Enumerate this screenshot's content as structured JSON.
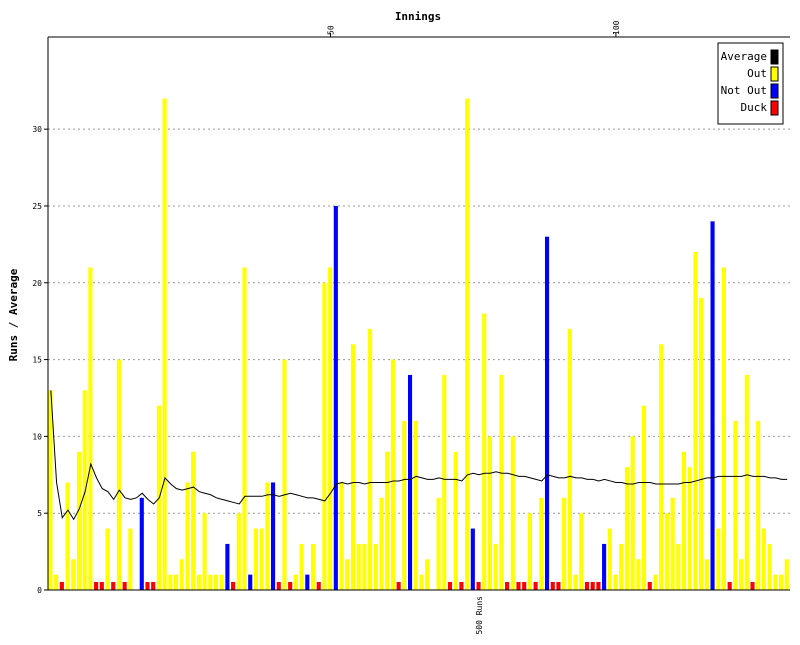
{
  "chart_data": {
    "type": "bar",
    "title": "",
    "xlabel": "Innings",
    "ylabel": "Runs / Average",
    "innings_count": 130,
    "xlim": [
      0,
      130
    ],
    "ylim": [
      0,
      36
    ],
    "yticks": [
      0,
      5,
      10,
      15,
      20,
      25,
      30
    ],
    "xticks_top": [
      50,
      100
    ],
    "grid": "horizontal dotted",
    "legend_position": "top-right",
    "legend": [
      {
        "label": "Average",
        "color": "#000000"
      },
      {
        "label": "Out",
        "color": "#ffff00"
      },
      {
        "label": "Not Out",
        "color": "#0000ff"
      },
      {
        "label": "Duck",
        "color": "#ff0000"
      }
    ],
    "colors": {
      "out": "#ffff00",
      "not_out": "#0000ff",
      "duck": "#ff0000",
      "average": "#000000"
    },
    "milestones": [
      {
        "label": "500 Runs",
        "innings": 76
      }
    ],
    "runs": [
      13,
      1,
      0,
      7,
      2,
      9,
      13,
      21,
      0,
      0,
      4,
      0,
      15,
      0,
      4,
      0,
      6,
      0,
      0,
      12,
      32,
      1,
      1,
      2,
      7,
      9,
      1,
      5,
      1,
      1,
      1,
      3,
      0,
      5,
      21,
      1,
      4,
      4,
      7,
      7,
      0,
      15,
      0,
      1,
      3,
      1,
      3,
      0,
      20,
      21,
      25,
      7,
      2,
      16,
      3,
      3,
      17,
      3,
      6,
      9,
      15,
      0,
      11,
      14,
      11,
      1,
      2,
      0,
      6,
      14,
      0,
      9,
      0,
      32,
      4,
      0,
      18,
      10,
      3,
      14,
      0,
      10,
      0,
      0,
      5,
      0,
      6,
      23,
      0,
      0,
      6,
      17,
      1,
      5,
      0,
      0,
      0,
      3,
      4,
      1,
      3,
      8,
      10,
      2,
      12,
      0,
      1,
      16,
      5,
      6,
      3,
      9,
      8,
      22,
      19,
      2,
      24,
      4,
      21,
      0,
      11,
      2,
      14,
      0,
      11,
      4,
      3,
      1,
      1,
      2
    ],
    "result": [
      "O",
      "O",
      "D",
      "O",
      "O",
      "O",
      "O",
      "O",
      "D",
      "D",
      "O",
      "D",
      "O",
      "D",
      "O",
      "O",
      "N",
      "D",
      "D",
      "O",
      "O",
      "O",
      "O",
      "O",
      "O",
      "O",
      "O",
      "O",
      "O",
      "O",
      "O",
      "N",
      "D",
      "O",
      "O",
      "N",
      "O",
      "O",
      "O",
      "N",
      "D",
      "O",
      "D",
      "O",
      "O",
      "N",
      "O",
      "D",
      "O",
      "O",
      "N",
      "O",
      "O",
      "O",
      "O",
      "O",
      "O",
      "O",
      "O",
      "O",
      "O",
      "D",
      "O",
      "N",
      "O",
      "O",
      "O",
      "O",
      "O",
      "O",
      "D",
      "O",
      "D",
      "O",
      "N",
      "D",
      "O",
      "O",
      "O",
      "O",
      "D",
      "O",
      "D",
      "D",
      "O",
      "D",
      "O",
      "N",
      "D",
      "D",
      "O",
      "O",
      "O",
      "O",
      "D",
      "D",
      "D",
      "N",
      "O",
      "O",
      "O",
      "O",
      "O",
      "O",
      "O",
      "D",
      "O",
      "O",
      "O",
      "O",
      "O",
      "O",
      "O",
      "O",
      "O",
      "O",
      "N",
      "O",
      "O",
      "D",
      "O",
      "O",
      "O",
      "D",
      "O",
      "O",
      "O",
      "O",
      "O",
      "O"
    ],
    "average": [
      13,
      7,
      4.7,
      5.2,
      4.6,
      5.3,
      6.4,
      8.2,
      7.3,
      6.6,
      6.4,
      5.9,
      6.5,
      6,
      5.9,
      6,
      6.3,
      5.9,
      5.6,
      6,
      7.3,
      6.9,
      6.6,
      6.5,
      6.6,
      6.7,
      6.4,
      6.3,
      6.2,
      6,
      5.9,
      5.8,
      5.7,
      5.6,
      6.1,
      6.1,
      6.1,
      6.1,
      6.2,
      6.2,
      6.1,
      6.2,
      6.3,
      6.2,
      6.1,
      6,
      6,
      5.9,
      5.8,
      6.3,
      6.9,
      7,
      6.9,
      7,
      7,
      6.9,
      7,
      7,
      7,
      7,
      7.1,
      7.1,
      7.2,
      7.2,
      7.4,
      7.3,
      7.2,
      7.2,
      7.3,
      7.2,
      7.2,
      7.2,
      7.1,
      7.5,
      7.6,
      7.5,
      7.6,
      7.6,
      7.7,
      7.6,
      7.6,
      7.5,
      7.4,
      7.4,
      7.3,
      7.2,
      7.1,
      7.5,
      7.4,
      7.3,
      7.3,
      7.4,
      7.3,
      7.3,
      7.2,
      7.2,
      7.1,
      7.2,
      7.1,
      7,
      7,
      6.9,
      6.9,
      7,
      7,
      7,
      6.9,
      6.9,
      6.9,
      6.9,
      6.9,
      7,
      7,
      7.1,
      7.2,
      7.3,
      7.3,
      7.4,
      7.4,
      7.4,
      7.4,
      7.4,
      7.5,
      7.4,
      7.4,
      7.4,
      7.3,
      7.3,
      7.2,
      7.2
    ]
  }
}
